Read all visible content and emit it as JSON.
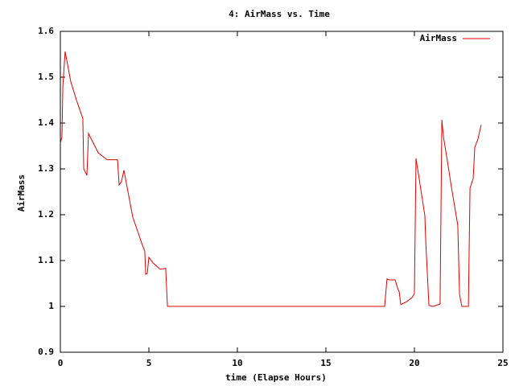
{
  "chart_data": {
    "type": "line",
    "title": "4: AirMass vs. Time",
    "x_label": "time (Elapse Hours)",
    "y_label": "AirMass",
    "xlim": [
      0,
      25
    ],
    "xticks": [
      0,
      5,
      10,
      15,
      20,
      25
    ],
    "ylim": [
      0.9,
      1.6
    ],
    "yticks": [
      0.9,
      1,
      1.1,
      1.2,
      1.3,
      1.4,
      1.5,
      1.6
    ],
    "legend": "top-right",
    "x": [
      0,
      0.09,
      0.14,
      0.27,
      0.59,
      0.91,
      1.27,
      1.32,
      1.5,
      1.59,
      2.14,
      2.64,
      3.23,
      3.32,
      3.45,
      3.59,
      4.09,
      4.64,
      4.77,
      4.82,
      4.91,
      5.0,
      5.23,
      5.64,
      5.95,
      6.05,
      18.32,
      18.45,
      18.59,
      18.91,
      19.05,
      19.14,
      19.23,
      19.55,
      19.86,
      20.0,
      20.09,
      20.59,
      20.64,
      20.82,
      21.05,
      21.45,
      21.55,
      21.64,
      21.86,
      22.09,
      22.23,
      22.45,
      22.55,
      22.68,
      23.05,
      23.14,
      23.32,
      23.41,
      23.59,
      23.77
    ],
    "series": [
      {
        "name": "AirMass",
        "color": "#e00000",
        "values": [
          1.356,
          1.37,
          1.48,
          1.556,
          1.49,
          1.45,
          1.41,
          1.3,
          1.286,
          1.377,
          1.335,
          1.32,
          1.32,
          1.265,
          1.272,
          1.297,
          1.195,
          1.133,
          1.12,
          1.07,
          1.072,
          1.107,
          1.095,
          1.081,
          1.083,
          1.0,
          1.0,
          1.06,
          1.058,
          1.058,
          1.04,
          1.032,
          1.004,
          1.01,
          1.019,
          1.028,
          1.323,
          1.198,
          1.142,
          1.002,
          1.0,
          1.005,
          1.407,
          1.37,
          1.318,
          1.26,
          1.228,
          1.177,
          1.026,
          1.0,
          1.0,
          1.258,
          1.279,
          1.347,
          1.365,
          1.396
        ]
      }
    ]
  }
}
